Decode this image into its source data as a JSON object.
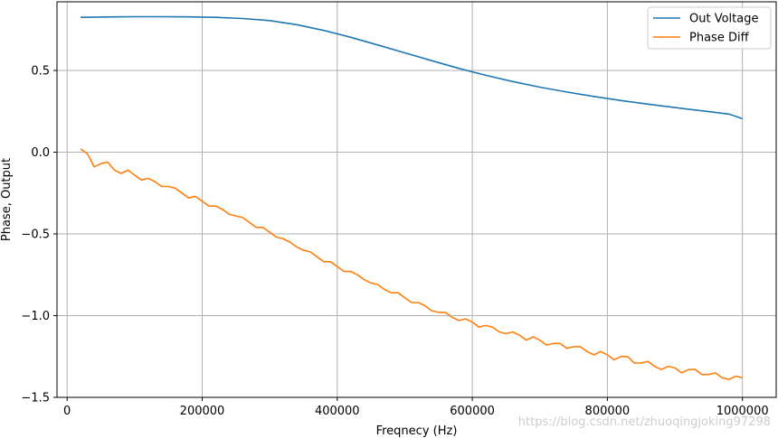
{
  "chart_data": {
    "type": "line",
    "title": "",
    "xlabel": "Freqnecy (Hz)",
    "ylabel": "Phase, Output",
    "xlim": [
      -15000,
      1050000
    ],
    "ylim": [
      -1.5,
      0.92
    ],
    "grid": true,
    "legend_position": "top-right",
    "xticks": [
      0,
      200000,
      400000,
      600000,
      800000,
      1000000
    ],
    "xtick_labels": [
      "0",
      "200000",
      "400000",
      "600000",
      "800000",
      "1000000"
    ],
    "yticks": [
      -1.5,
      -1.0,
      -0.5,
      0.0,
      0.5
    ],
    "ytick_labels": [
      "−1.5",
      "−1.0",
      "−0.5",
      "0.0",
      "0.5"
    ],
    "series": [
      {
        "name": "Out Voltage",
        "color": "#1f77b4",
        "x": [
          20000,
          60000,
          100000,
          140000,
          180000,
          220000,
          260000,
          300000,
          340000,
          380000,
          420000,
          460000,
          500000,
          540000,
          580000,
          620000,
          660000,
          700000,
          740000,
          780000,
          820000,
          860000,
          900000,
          940000,
          980000,
          1000000
        ],
        "y": [
          0.825,
          0.827,
          0.829,
          0.829,
          0.828,
          0.825,
          0.818,
          0.805,
          0.78,
          0.745,
          0.703,
          0.656,
          0.608,
          0.56,
          0.513,
          0.47,
          0.432,
          0.398,
          0.368,
          0.341,
          0.316,
          0.294,
          0.273,
          0.253,
          0.233,
          0.205
        ]
      },
      {
        "name": "Phase Diff",
        "color": "#ff7f0e",
        "x": [
          20000,
          30000,
          40000,
          50000,
          60000,
          70000,
          80000,
          90000,
          100000,
          110000,
          120000,
          130000,
          140000,
          150000,
          160000,
          170000,
          180000,
          190000,
          200000,
          210000,
          220000,
          230000,
          240000,
          250000,
          260000,
          270000,
          280000,
          290000,
          300000,
          310000,
          320000,
          330000,
          340000,
          350000,
          360000,
          370000,
          380000,
          390000,
          400000,
          410000,
          420000,
          430000,
          440000,
          450000,
          460000,
          470000,
          480000,
          490000,
          500000,
          510000,
          520000,
          530000,
          540000,
          550000,
          560000,
          570000,
          580000,
          590000,
          600000,
          610000,
          620000,
          630000,
          640000,
          650000,
          660000,
          670000,
          680000,
          690000,
          700000,
          710000,
          720000,
          730000,
          740000,
          750000,
          760000,
          770000,
          780000,
          790000,
          800000,
          810000,
          820000,
          830000,
          840000,
          850000,
          860000,
          870000,
          880000,
          890000,
          900000,
          910000,
          920000,
          930000,
          940000,
          950000,
          960000,
          970000,
          980000,
          990000,
          1000000
        ],
        "y": [
          0.02,
          -0.01,
          -0.09,
          -0.07,
          -0.06,
          -0.11,
          -0.13,
          -0.11,
          -0.14,
          -0.17,
          -0.16,
          -0.18,
          -0.21,
          -0.21,
          -0.22,
          -0.25,
          -0.28,
          -0.27,
          -0.3,
          -0.33,
          -0.33,
          -0.35,
          -0.38,
          -0.39,
          -0.4,
          -0.43,
          -0.46,
          -0.46,
          -0.49,
          -0.52,
          -0.53,
          -0.55,
          -0.58,
          -0.6,
          -0.61,
          -0.64,
          -0.67,
          -0.67,
          -0.7,
          -0.73,
          -0.73,
          -0.75,
          -0.78,
          -0.8,
          -0.81,
          -0.84,
          -0.86,
          -0.86,
          -0.89,
          -0.92,
          -0.92,
          -0.94,
          -0.97,
          -0.98,
          -0.98,
          -1.01,
          -1.03,
          -1.02,
          -1.04,
          -1.07,
          -1.06,
          -1.07,
          -1.1,
          -1.11,
          -1.1,
          -1.12,
          -1.15,
          -1.13,
          -1.15,
          -1.18,
          -1.17,
          -1.17,
          -1.2,
          -1.19,
          -1.19,
          -1.22,
          -1.24,
          -1.22,
          -1.24,
          -1.27,
          -1.25,
          -1.25,
          -1.29,
          -1.29,
          -1.28,
          -1.31,
          -1.33,
          -1.31,
          -1.32,
          -1.35,
          -1.33,
          -1.33,
          -1.36,
          -1.36,
          -1.35,
          -1.38,
          -1.39,
          -1.37,
          -1.38
        ]
      }
    ]
  },
  "watermark": "https://blog.csdn.net/zhuoqingjoking97298"
}
